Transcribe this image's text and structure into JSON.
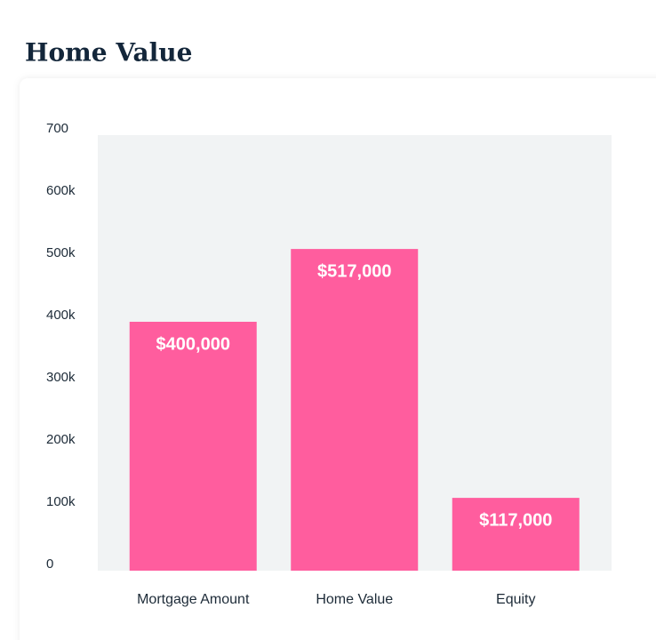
{
  "chart_data": {
    "type": "bar",
    "title": "Home Value",
    "categories": [
      "Mortgage Amount",
      "Home Value",
      "Equity"
    ],
    "values": [
      400000,
      517000,
      117000
    ],
    "value_labels": [
      "$400,000",
      "$517,000",
      "$117,000"
    ],
    "color": "#ff5d9e",
    "ylim": [
      0,
      700000
    ],
    "yticks": [
      0,
      {
        "value": 100000,
        "label": "100k"
      },
      {
        "value": 200000,
        "label": "200k"
      },
      {
        "value": 300000,
        "label": "300k"
      },
      {
        "value": 400000,
        "label": "400k"
      },
      {
        "value": 500000,
        "label": "500k"
      },
      {
        "value": 600000,
        "label": "600k"
      },
      {
        "value": 700000,
        "label": "700"
      }
    ]
  }
}
